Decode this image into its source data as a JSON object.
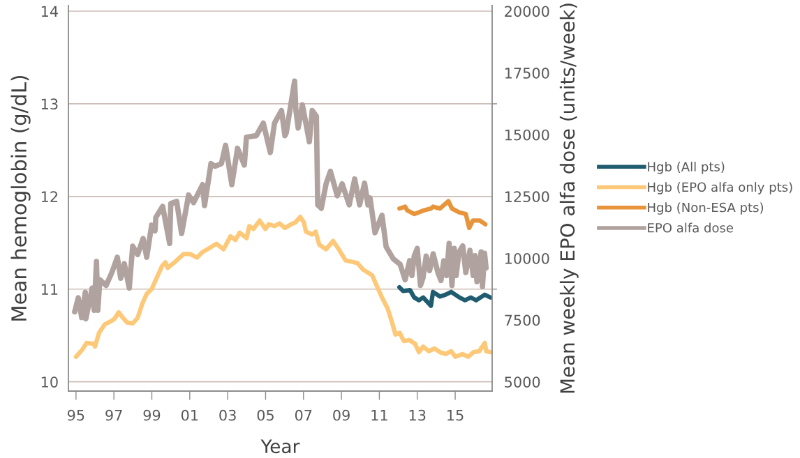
{
  "chart_data": {
    "type": "line",
    "xlabel": "Year",
    "ylabel": "Mean hemoglobin (g/dL)",
    "y2label": "Mean weekly EPO alfa dose (units/week)",
    "xlim": [
      1994.6,
      2016.95
    ],
    "xticks": [
      {
        "value": 1995,
        "label": "95"
      },
      {
        "value": 1997,
        "label": "97"
      },
      {
        "value": 1999,
        "label": "99"
      },
      {
        "value": 2001,
        "label": "01"
      },
      {
        "value": 2003,
        "label": "03"
      },
      {
        "value": 2005,
        "label": "05"
      },
      {
        "value": 2007,
        "label": "07"
      },
      {
        "value": 2009,
        "label": "09"
      },
      {
        "value": 2011,
        "label": "11"
      },
      {
        "value": 2013,
        "label": "13"
      },
      {
        "value": 2015,
        "label": "15"
      }
    ],
    "ylim": [
      9.9,
      14.06
    ],
    "yticks": [
      10,
      11,
      12,
      13,
      14
    ],
    "y2lim": [
      4625,
      20225
    ],
    "y2ticks": [
      5000,
      7500,
      {
        "value": 8750,
        "label": null
      },
      10000,
      12500,
      15000,
      {
        "value": 16250,
        "label": null
      },
      17500,
      20000
    ],
    "grid": "y",
    "legend": "right",
    "series": [
      {
        "name": "Hgb (All pts)",
        "color": "#1f5c70",
        "x": [
          2012.06,
          2012.25,
          2012.62,
          2012.84,
          2013.09,
          2013.31,
          2013.72,
          2013.83,
          2014.2,
          2014.49,
          2014.79,
          2015.23,
          2015.52,
          2015.82,
          2016.11,
          2016.56,
          2016.86
        ],
        "values": [
          11.02,
          10.98,
          10.99,
          10.91,
          10.88,
          10.91,
          10.82,
          10.97,
          10.92,
          10.94,
          10.97,
          10.91,
          10.88,
          10.91,
          10.88,
          10.94,
          10.91
        ]
      },
      {
        "name": "Hgb (EPO alfa only pts)",
        "color": "#fdc877",
        "x": [
          1995.0,
          1995.34,
          1995.56,
          1995.93,
          1996.0,
          1996.22,
          1996.52,
          1996.81,
          1997.03,
          1997.25,
          1997.48,
          1997.7,
          1997.99,
          1998.25,
          1998.51,
          1998.73,
          1998.99,
          1999.32,
          1999.54,
          1999.72,
          1999.83,
          2000.2,
          2000.68,
          2001.01,
          2001.38,
          2001.67,
          2001.93,
          2002.41,
          2002.78,
          2003.15,
          2003.41,
          2003.63,
          2004.0,
          2004.14,
          2004.36,
          2004.69,
          2004.99,
          2005.17,
          2005.47,
          2005.73,
          2006.02,
          2006.35,
          2006.57,
          2006.83,
          2007.02,
          2007.13,
          2007.46,
          2007.64,
          2007.83,
          2008.19,
          2008.56,
          2008.86,
          2009.22,
          2009.67,
          2009.85,
          2010.15,
          2010.62,
          2010.81,
          2011.14,
          2011.44,
          2011.7,
          2011.85,
          2012.07,
          2012.29,
          2012.59,
          2012.88,
          2013.09,
          2013.31,
          2013.61,
          2013.9,
          2014.2,
          2014.49,
          2014.79,
          2015.01,
          2015.38,
          2015.68,
          2015.97,
          2016.27,
          2016.56,
          2016.64,
          2016.86
        ],
        "values": [
          10.27,
          10.35,
          10.42,
          10.41,
          10.38,
          10.53,
          10.62,
          10.65,
          10.68,
          10.75,
          10.69,
          10.64,
          10.63,
          10.69,
          10.85,
          10.95,
          11.0,
          11.15,
          11.25,
          11.29,
          11.23,
          11.29,
          11.38,
          11.38,
          11.34,
          11.4,
          11.43,
          11.49,
          11.43,
          11.57,
          11.53,
          11.61,
          11.55,
          11.68,
          11.65,
          11.74,
          11.65,
          11.7,
          11.68,
          11.71,
          11.66,
          11.7,
          11.72,
          11.78,
          11.72,
          11.62,
          11.59,
          11.62,
          11.48,
          11.43,
          11.52,
          11.43,
          11.31,
          11.29,
          11.28,
          11.21,
          11.15,
          11.06,
          10.91,
          10.79,
          10.62,
          10.51,
          10.53,
          10.44,
          10.45,
          10.41,
          10.32,
          10.38,
          10.33,
          10.36,
          10.32,
          10.3,
          10.33,
          10.27,
          10.3,
          10.27,
          10.32,
          10.33,
          10.42,
          10.33,
          10.32
        ]
      },
      {
        "name": "Hgb (Non-ESA pts)",
        "color": "#e8943a",
        "x": [
          2012.06,
          2012.36,
          2012.47,
          2012.84,
          2013.35,
          2013.72,
          2013.83,
          2014.2,
          2014.64,
          2014.83,
          2015.2,
          2015.56,
          2015.74,
          2015.93,
          2016.3,
          2016.59
        ],
        "values": [
          11.87,
          11.89,
          11.85,
          11.81,
          11.85,
          11.87,
          11.89,
          11.87,
          11.95,
          11.87,
          11.83,
          11.81,
          11.66,
          11.74,
          11.74,
          11.7
        ]
      },
      {
        "name": "EPO alfa dose",
        "color": "#b0a29e",
        "axis": "y2",
        "x": [
          1994.93,
          1995.12,
          1995.3,
          1995.49,
          1995.52,
          1995.85,
          1995.96,
          1996.08,
          1996.15,
          1996.26,
          1996.59,
          1996.89,
          1997.18,
          1997.36,
          1997.55,
          1997.81,
          1997.99,
          1998.25,
          1998.54,
          1998.73,
          1998.99,
          1999.17,
          1999.21,
          1999.57,
          1999.94,
          2000.0,
          2000.31,
          2000.57,
          2000.94,
          2001.2,
          2001.68,
          2001.78,
          2002.12,
          2002.34,
          2002.67,
          2002.89,
          2003.22,
          2003.52,
          2003.88,
          2003.99,
          2004.51,
          2004.88,
          2005.25,
          2005.47,
          2005.84,
          2006.02,
          2006.09,
          2006.53,
          2006.6,
          2006.72,
          2006.94,
          2007.31,
          2007.46,
          2007.68,
          2007.75,
          2007.94,
          2008.19,
          2008.42,
          2008.78,
          2009.04,
          2009.41,
          2009.7,
          2009.96,
          2010.22,
          2010.4,
          2010.51,
          2010.77,
          2011.14,
          2011.36,
          2011.73,
          2012.1,
          2012.36,
          2012.6,
          2012.72,
          2012.84,
          2013.0,
          2013.17,
          2013.3,
          2013.47,
          2013.65,
          2013.84,
          2014.09,
          2014.25,
          2014.4,
          2014.55,
          2014.68,
          2014.83,
          2014.95,
          2015.05,
          2015.2,
          2015.4,
          2015.56,
          2015.78,
          2015.95,
          2016.05,
          2016.15,
          2016.25,
          2016.37,
          2016.44,
          2016.55,
          2016.63
        ],
        "values": [
          7830,
          8400,
          7600,
          8620,
          7550,
          8790,
          7890,
          9870,
          7890,
          9130,
          8900,
          9420,
          10040,
          9190,
          9780,
          8790,
          10490,
          10150,
          10800,
          10040,
          11340,
          11110,
          11650,
          12100,
          10600,
          12220,
          12300,
          11000,
          12560,
          12250,
          12980,
          12130,
          13830,
          13720,
          13830,
          14570,
          12980,
          14450,
          13770,
          14900,
          14960,
          15470,
          14280,
          15470,
          15980,
          14960,
          15070,
          17170,
          15980,
          15270,
          16210,
          14710,
          15980,
          15750,
          12160,
          12020,
          13010,
          13520,
          12530,
          13010,
          12160,
          13210,
          12160,
          13040,
          12160,
          12440,
          11030,
          11740,
          10460,
          9980,
          9750,
          9130,
          9900,
          9300,
          10090,
          10400,
          8900,
          9200,
          10090,
          9500,
          10180,
          9420,
          9100,
          9900,
          9300,
          10600,
          8900,
          10400,
          9300,
          10240,
          10500,
          9420,
          10320,
          9300,
          10100,
          9050,
          9400,
          10260,
          8850,
          10200,
          9610
        ]
      }
    ]
  }
}
